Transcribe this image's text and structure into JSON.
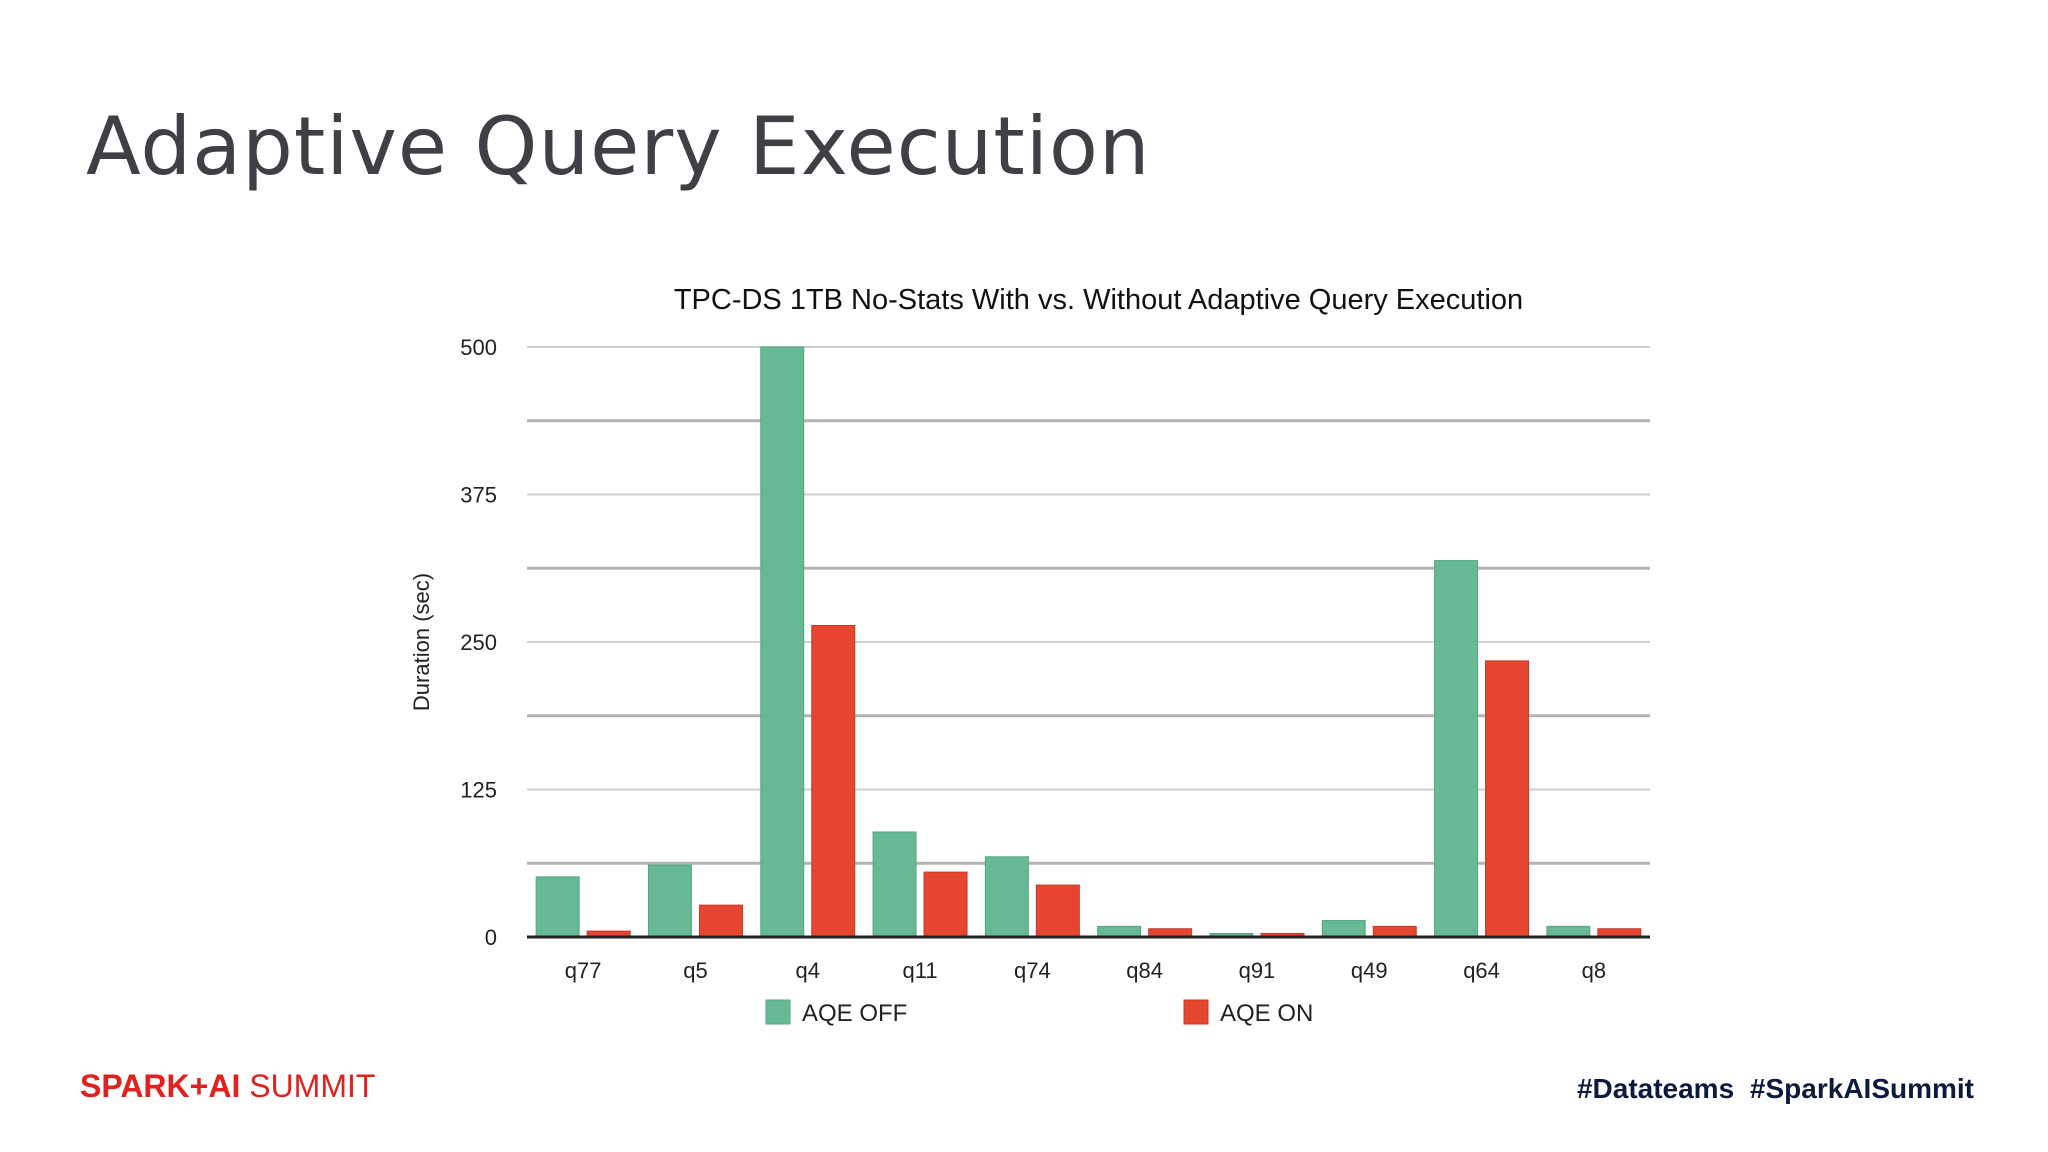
{
  "slide": {
    "title": "Adaptive Query Execution",
    "brand_strong": "SPARK+AI",
    "brand_light": " SUMMIT",
    "hashtags": "#Datateams  #SparkAISummit"
  },
  "chart_data": {
    "type": "bar",
    "title": "TPC-DS 1TB No-Stats With vs. Without Adaptive Query Execution",
    "xlabel": "",
    "ylabel": "Duration (sec)",
    "ylim": [
      0,
      500
    ],
    "yticks": [
      0,
      125,
      250,
      375,
      500
    ],
    "grid": true,
    "legend_position": "bottom",
    "categories": [
      "q77",
      "q5",
      "q4",
      "q11",
      "q74",
      "q84",
      "q91",
      "q49",
      "q64",
      "q8"
    ],
    "series": [
      {
        "name": "AQE OFF",
        "color": "#66b994",
        "values": [
          51,
          61,
          500,
          89,
          68,
          9,
          3,
          14,
          319,
          9
        ]
      },
      {
        "name": "AQE ON",
        "color": "#e6452f",
        "values": [
          5,
          27,
          264,
          55,
          44,
          7,
          3,
          9,
          234,
          7
        ]
      }
    ]
  }
}
